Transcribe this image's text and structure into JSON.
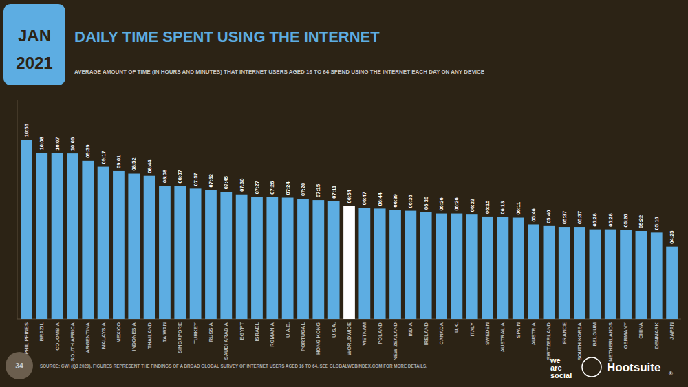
{
  "chart_data": {
    "type": "bar",
    "title": "DAILY TIME SPENT USING THE INTERNET",
    "subtitle": "AVERAGE AMOUNT OF TIME (IN HOURS AND MINUTES) THAT INTERNET USERS AGED 16 TO 64 SPEND USING THE INTERNET EACH DAY ON ANY DEVICE",
    "categories": [
      "PHILIPPINES",
      "BRAZIL",
      "COLOMBIA",
      "SOUTH AFRICA",
      "ARGENTINA",
      "MALAYSIA",
      "MEXICO",
      "INDONESIA",
      "THAILAND",
      "TAIWAN",
      "SINGAPORE",
      "TURKEY",
      "RUSSIA",
      "SAUDI ARABIA",
      "EGYPT",
      "ISRAEL",
      "ROMANIA",
      "U.A.E.",
      "PORTUGAL",
      "HONG KONG",
      "U.S.A.",
      "WORLDWIDE",
      "VIETNAM",
      "POLAND",
      "NEW ZEALAND",
      "INDIA",
      "IRELAND",
      "CANADA",
      "U.K.",
      "ITALY",
      "SWEDEN",
      "AUSTRALIA",
      "SPAIN",
      "AUSTRIA",
      "SWITZERLAND",
      "FRANCE",
      "SOUTH KOREA",
      "BELGIUM",
      "NETHERLANDS",
      "GERMANY",
      "CHINA",
      "DENMARK",
      "JAPAN"
    ],
    "values": [
      656,
      608,
      607,
      606,
      579,
      557,
      541,
      532,
      524,
      488,
      487,
      477,
      472,
      465,
      456,
      447,
      446,
      444,
      440,
      435,
      431,
      414,
      407,
      404,
      399,
      396,
      390,
      386,
      386,
      382,
      375,
      373,
      371,
      346,
      340,
      337,
      337,
      328,
      328,
      326,
      322,
      316,
      265
    ],
    "value_labels": [
      "10:56",
      "10:08",
      "10:07",
      "10:06",
      "09:39",
      "09:17",
      "09:01",
      "08:52",
      "08:44",
      "08:08",
      "08:07",
      "07:57",
      "07:52",
      "07:45",
      "07:36",
      "07:27",
      "07:26",
      "07:24",
      "07:20",
      "07:15",
      "07:11",
      "06:54",
      "06:47",
      "06:44",
      "06:39",
      "06:36",
      "06:30",
      "06:26",
      "06:26",
      "06:22",
      "06:15",
      "06:13",
      "06:11",
      "05:46",
      "05:40",
      "05:37",
      "05:37",
      "05:28",
      "05:28",
      "05:26",
      "05:22",
      "05:16",
      "04:25"
    ],
    "colors": [
      "#5DADE2",
      "#5DADE2",
      "#5DADE2",
      "#5DADE2",
      "#5DADE2",
      "#5DADE2",
      "#5DADE2",
      "#5DADE2",
      "#5DADE2",
      "#5DADE2",
      "#5DADE2",
      "#5DADE2",
      "#5DADE2",
      "#5DADE2",
      "#5DADE2",
      "#5DADE2",
      "#5DADE2",
      "#5DADE2",
      "#5DADE2",
      "#5DADE2",
      "#5DADE2",
      "#FFFFFF",
      "#5DADE2",
      "#5DADE2",
      "#5DADE2",
      "#5DADE2",
      "#5DADE2",
      "#5DADE2",
      "#5DADE2",
      "#5DADE2",
      "#5DADE2",
      "#5DADE2",
      "#5DADE2",
      "#5DADE2",
      "#5DADE2",
      "#5DADE2",
      "#5DADE2",
      "#5DADE2",
      "#5DADE2",
      "#5DADE2",
      "#5DADE2",
      "#5DADE2",
      "#5DADE2"
    ],
    "ylim": [
      0,
      800
    ],
    "grid": false,
    "data_labels": true,
    "tick_labels": "x",
    "annotations": [
      "JAN",
      "2021",
      "34",
      "SOURCE: GWI (Q3 2020). FIGURES REPRESENT THE FINDINGS OF A BROAD GLOBAL SURVEY OF INTERNET USERS AGED 16 TO 64. SEE GLOBALWEBINDEX.COM FOR MORE DETAILS.",
      "we",
      "are",
      "social",
      "Hootsuite",
      "®"
    ]
  }
}
